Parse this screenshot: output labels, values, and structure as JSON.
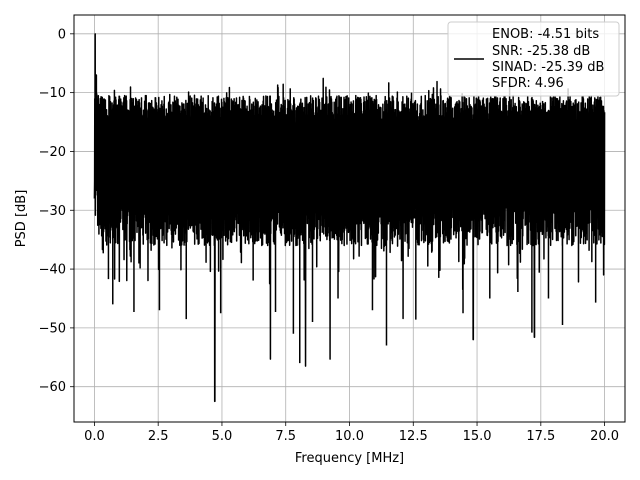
{
  "chart_data": {
    "type": "line",
    "xlabel": "Frequency [MHz]",
    "ylabel": "PSD [dB]",
    "xlim": [
      -0.8,
      20.8
    ],
    "ylim": [
      -66,
      3.2
    ],
    "x_ticks": [
      0.0,
      2.5,
      5.0,
      7.5,
      10.0,
      12.5,
      15.0,
      17.5,
      20.0
    ],
    "x_tick_labels": [
      "0.0",
      "2.5",
      "5.0",
      "7.5",
      "10.0",
      "12.5",
      "15.0",
      "17.5",
      "20.0"
    ],
    "y_ticks": [
      0,
      -10,
      -20,
      -30,
      -40,
      -50,
      -60
    ],
    "y_tick_labels": [
      "0",
      "−10",
      "−20",
      "−30",
      "−40",
      "−50",
      "−60"
    ],
    "grid": true,
    "legend_position": "top-right",
    "legend": [
      "ENOB: -4.51 bits",
      "SNR: -25.38 dB",
      "SINAD: -25.39 dB",
      "SFDR: 4.96"
    ],
    "colors": {
      "line": "#000000",
      "grid": "#b0b0b0"
    },
    "series": [
      {
        "description_of_shape": "noise floor spanning roughly -10 to -35 dB across 0-20 MHz, peak near 0 dB at DC",
        "x": [
          0.0,
          0.03,
          0.06,
          0.1,
          4.72,
          6.9,
          8.28,
          9.24,
          12.1,
          14.85,
          17.25
        ],
        "y": [
          -28.0,
          0.0,
          -12.0,
          -22.0,
          -62.5,
          -55.3,
          -56.5,
          -55.3,
          -48.4,
          -52.0,
          -51.6
        ]
      }
    ]
  }
}
